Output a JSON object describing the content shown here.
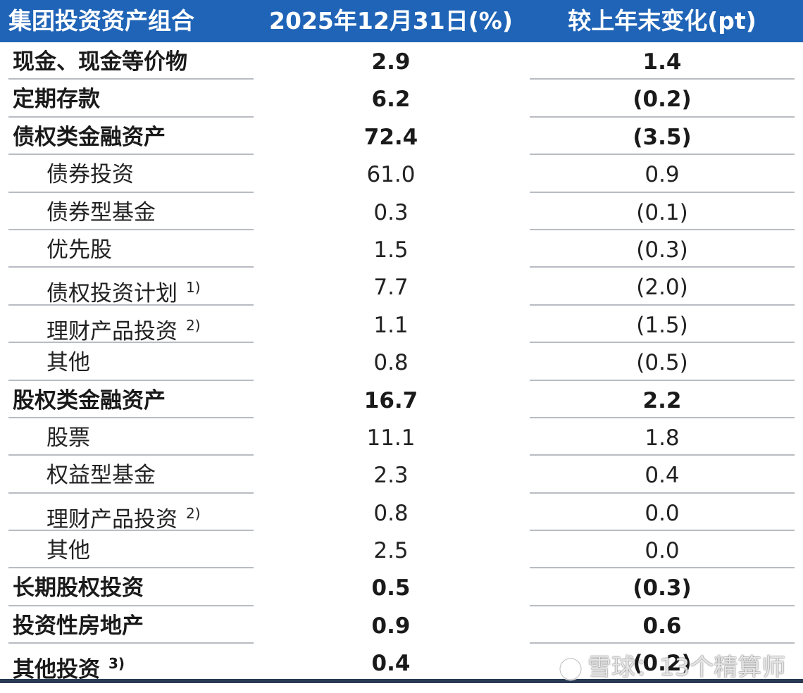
{
  "header": {
    "col_name": "集团投资资产组合",
    "col_current": "2025年12月31日(%)",
    "col_change": "较上年末变化(pt)"
  },
  "rows": [
    {
      "name": "现金、现金等价物",
      "current": "2.9",
      "change": "1.4",
      "level": "top",
      "note": ""
    },
    {
      "name": "定期存款",
      "current": "6.2",
      "change": "(0.2)",
      "level": "top",
      "note": ""
    },
    {
      "name": "债权类金融资产",
      "current": "72.4",
      "change": "(3.5)",
      "level": "top",
      "note": ""
    },
    {
      "name": "债券投资",
      "current": "61.0",
      "change": "0.9",
      "level": "sub",
      "note": ""
    },
    {
      "name": "债券型基金",
      "current": "0.3",
      "change": "(0.1)",
      "level": "sub",
      "note": ""
    },
    {
      "name": "优先股",
      "current": "1.5",
      "change": "(0.3)",
      "level": "sub",
      "note": ""
    },
    {
      "name": "债权投资计划",
      "current": "7.7",
      "change": "(2.0)",
      "level": "sub",
      "note": "1)"
    },
    {
      "name": "理财产品投资",
      "current": "1.1",
      "change": "(1.5)",
      "level": "sub",
      "note": "2)"
    },
    {
      "name": "其他",
      "current": "0.8",
      "change": "(0.5)",
      "level": "sub",
      "note": ""
    },
    {
      "name": "股权类金融资产",
      "current": "16.7",
      "change": "2.2",
      "level": "top",
      "note": ""
    },
    {
      "name": "股票",
      "current": "11.1",
      "change": "1.8",
      "level": "sub",
      "note": ""
    },
    {
      "name": "权益型基金",
      "current": "2.3",
      "change": "0.4",
      "level": "sub",
      "note": ""
    },
    {
      "name": "理财产品投资",
      "current": "0.8",
      "change": "0.0",
      "level": "sub",
      "note": "2)"
    },
    {
      "name": "其他",
      "current": "2.5",
      "change": "0.0",
      "level": "sub",
      "note": ""
    },
    {
      "name": "长期股权投资",
      "current": "0.5",
      "change": "(0.3)",
      "level": "top",
      "note": ""
    },
    {
      "name": "投资性房地产",
      "current": "0.9",
      "change": "0.6",
      "level": "top",
      "note": ""
    },
    {
      "name": "其他投资",
      "current": "0.4",
      "change": "(0.2)",
      "level": "top",
      "note": "3)"
    }
  ],
  "watermark": {
    "text": "雪球：13个精算师",
    "icon": "snowball-logo-icon"
  },
  "colors": {
    "header_bg": "#1f64b7",
    "header_text": "#ffffff",
    "rule": "#b8bcc2",
    "bottom_rule": "#2a3a55"
  }
}
